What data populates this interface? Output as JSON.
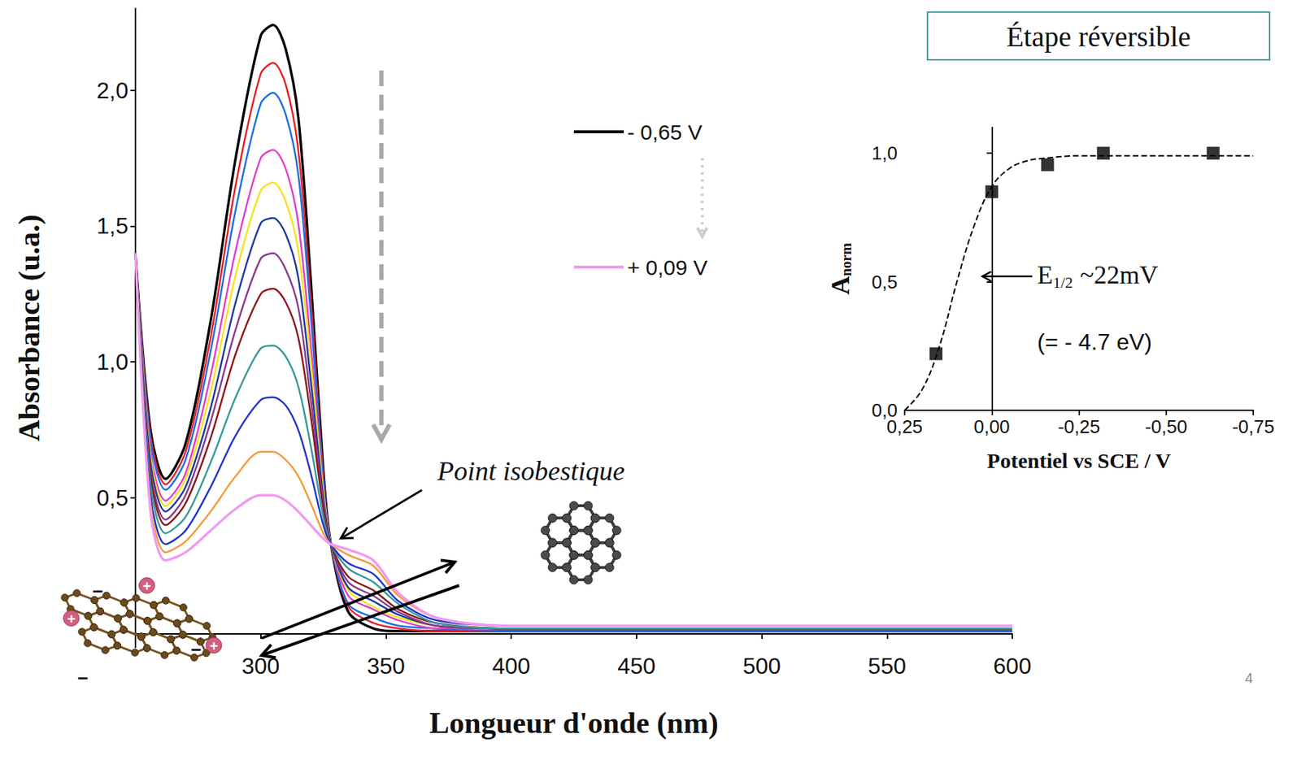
{
  "chart_data": [
    {
      "type": "line",
      "x_label": "Longueur d'onde (nm)",
      "y_label": "Absorbance (u.a.)",
      "grid": false,
      "legend": "top",
      "x": [
        250,
        256,
        262,
        270,
        280,
        290,
        300,
        305,
        310,
        315,
        320,
        325,
        328,
        335,
        345,
        355,
        370,
        400,
        450,
        600
      ],
      "xlim": [
        250,
        600
      ],
      "xticks": [
        300,
        350,
        400,
        450,
        500,
        550,
        600
      ],
      "ylim": [
        -0.05,
        2.3
      ],
      "yticks": [
        {
          "value": 0.5,
          "label": "0,5"
        },
        {
          "value": 1.0,
          "label": "1,0"
        },
        {
          "value": 1.5,
          "label": "1,5"
        },
        {
          "value": 2.0,
          "label": "2,0"
        }
      ],
      "series": [
        {
          "name": "- 0,65 V",
          "color": "#000000",
          "values": [
            1.4,
            0.75,
            0.57,
            0.7,
            1.15,
            1.75,
            2.2,
            2.24,
            2.15,
            1.9,
            1.3,
            0.6,
            0.33,
            0.08,
            0.02,
            0.01,
            0.01,
            0.01,
            0.01,
            0.01
          ]
        },
        {
          "color": "#e8202a",
          "values": [
            1.4,
            0.73,
            0.55,
            0.67,
            1.09,
            1.65,
            2.06,
            2.1,
            2.02,
            1.78,
            1.23,
            0.58,
            0.33,
            0.1,
            0.04,
            0.02,
            0.01,
            0.01,
            0.01,
            0.01
          ]
        },
        {
          "color": "#1f6fe0",
          "values": [
            1.4,
            0.71,
            0.53,
            0.64,
            1.04,
            1.56,
            1.95,
            1.99,
            1.91,
            1.69,
            1.17,
            0.56,
            0.33,
            0.11,
            0.06,
            0.03,
            0.02,
            0.01,
            0.01,
            0.01
          ]
        },
        {
          "color": "#e040c8",
          "values": [
            1.4,
            0.67,
            0.49,
            0.59,
            0.95,
            1.41,
            1.75,
            1.78,
            1.71,
            1.51,
            1.06,
            0.53,
            0.33,
            0.14,
            0.09,
            0.05,
            0.02,
            0.02,
            0.02,
            0.02
          ]
        },
        {
          "color": "#f5e31e",
          "values": [
            1.4,
            0.65,
            0.47,
            0.57,
            0.89,
            1.32,
            1.63,
            1.66,
            1.59,
            1.41,
            1.0,
            0.52,
            0.33,
            0.16,
            0.1,
            0.06,
            0.03,
            0.02,
            0.02,
            0.02
          ]
        },
        {
          "color": "#1e3a9e",
          "values": [
            1.4,
            0.63,
            0.45,
            0.54,
            0.83,
            1.22,
            1.51,
            1.53,
            1.47,
            1.31,
            0.93,
            0.5,
            0.33,
            0.17,
            0.12,
            0.07,
            0.03,
            0.02,
            0.02,
            0.02
          ]
        },
        {
          "color": "#8a3c8c",
          "values": [
            1.4,
            0.6,
            0.42,
            0.51,
            0.78,
            1.12,
            1.38,
            1.4,
            1.34,
            1.2,
            0.86,
            0.48,
            0.33,
            0.19,
            0.14,
            0.08,
            0.03,
            0.02,
            0.02,
            0.02
          ]
        },
        {
          "color": "#8b1a1a",
          "values": [
            1.4,
            0.58,
            0.4,
            0.48,
            0.72,
            1.03,
            1.25,
            1.27,
            1.22,
            1.09,
            0.8,
            0.46,
            0.33,
            0.21,
            0.16,
            0.09,
            0.04,
            0.02,
            0.02,
            0.02
          ]
        },
        {
          "color": "#3a9a9a",
          "values": [
            1.4,
            0.55,
            0.37,
            0.43,
            0.63,
            0.87,
            1.05,
            1.06,
            1.02,
            0.91,
            0.69,
            0.43,
            0.33,
            0.24,
            0.19,
            0.11,
            0.04,
            0.02,
            0.02,
            0.02
          ]
        },
        {
          "color": "#2036c8",
          "values": [
            1.4,
            0.51,
            0.33,
            0.38,
            0.54,
            0.73,
            0.86,
            0.87,
            0.84,
            0.75,
            0.59,
            0.4,
            0.33,
            0.26,
            0.22,
            0.12,
            0.05,
            0.03,
            0.03,
            0.03
          ]
        },
        {
          "color": "#f59a3a",
          "values": [
            1.4,
            0.48,
            0.3,
            0.34,
            0.45,
            0.58,
            0.67,
            0.67,
            0.64,
            0.58,
            0.48,
            0.37,
            0.33,
            0.29,
            0.25,
            0.14,
            0.06,
            0.03,
            0.03,
            0.03
          ]
        },
        {
          "name": "+ 0,09 V",
          "color": "#f09af0",
          "values": [
            1.4,
            0.45,
            0.27,
            0.3,
            0.38,
            0.46,
            0.51,
            0.51,
            0.49,
            0.45,
            0.4,
            0.35,
            0.33,
            0.31,
            0.27,
            0.15,
            0.06,
            0.03,
            0.03,
            0.03
          ]
        }
      ]
    },
    {
      "type": "scatter",
      "x_label": "Potentiel vs SCE / V",
      "y_label": "A",
      "y_label_subscript": "norm",
      "grid": false,
      "xlim": [
        0.25,
        -0.75
      ],
      "xticks": [
        {
          "value": 0.25,
          "label": "0,25"
        },
        {
          "value": 0,
          "label": "0,00"
        },
        {
          "value": -0.25,
          "label": "-0,25"
        },
        {
          "value": -0.5,
          "label": "-0,50"
        },
        {
          "value": -0.75,
          "label": "-0,75"
        }
      ],
      "ylim": [
        0,
        1.1
      ],
      "yticks": [
        {
          "value": 0,
          "label": "0,0"
        },
        {
          "value": 0.5,
          "label": "0,5"
        },
        {
          "value": 1.0,
          "label": "1,0"
        }
      ],
      "series": [
        {
          "type": "line",
          "line_style": "dashed",
          "color": "#000000",
          "x": [
            0.25,
            0.2,
            0.15,
            0.1,
            0.05,
            0.0,
            -0.05,
            -0.1,
            -0.15,
            -0.25,
            -0.5,
            -0.75
          ],
          "values": [
            0.0,
            0.08,
            0.25,
            0.5,
            0.72,
            0.87,
            0.94,
            0.97,
            0.98,
            0.99,
            0.99,
            0.99
          ]
        },
        {
          "type": "scatter",
          "marker": "square",
          "color": "#000000",
          "x": [
            0.16,
            0.0,
            -0.16,
            -0.32,
            -0.635
          ],
          "values": [
            0.22,
            0.85,
            0.955,
            1.0,
            1.0
          ]
        }
      ]
    }
  ],
  "annotations": {
    "box_title": "Étape réversible",
    "isobestic_label": "Point isobestique",
    "e_half": {
      "symbol": "E",
      "subscript": "1/2",
      "text": "~22mV"
    },
    "energy": "(= - 4.7 eV)",
    "page_number": "4",
    "charges": {
      "positive": "+",
      "negative": "−"
    }
  }
}
